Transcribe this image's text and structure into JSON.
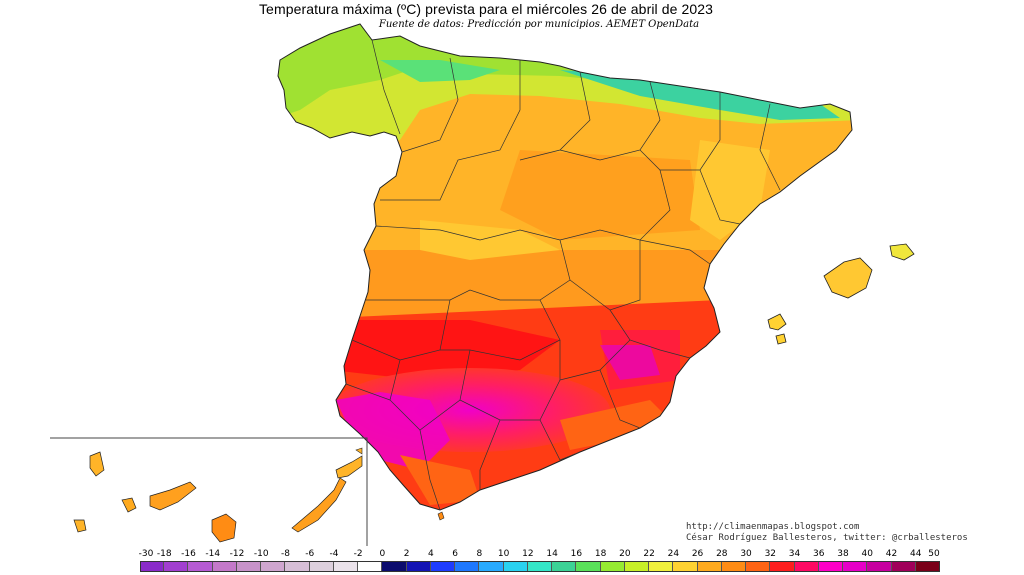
{
  "title": "Temperatura máxima (ºC) prevista para el miércoles 26 de abril de 2023",
  "subtitle": "Fuente de datos: Predicción por municipios. AEMET OpenData",
  "credit": {
    "url": "http://climaenmapas.blogspot.com",
    "author": "César Rodríguez Ballesteros, twitter: @crballesteros"
  },
  "legend": {
    "labels": [
      "-30",
      "-18",
      "-16",
      "-14",
      "-12",
      "-10",
      "-8",
      "-6",
      "-4",
      "-2",
      "0",
      "2",
      "4",
      "6",
      "8",
      "10",
      "12",
      "14",
      "16",
      "18",
      "20",
      "22",
      "24",
      "26",
      "28",
      "30",
      "32",
      "34",
      "36",
      "38",
      "40",
      "42",
      "44",
      "50"
    ],
    "colors": [
      "#8a2bc9",
      "#a23fd0",
      "#b65bd4",
      "#c479c9",
      "#c893c9",
      "#cfa6cf",
      "#d6bed6",
      "#ddd0dd",
      "#ebe3eb",
      "#ffffff",
      "#0c0c6e",
      "#1414b4",
      "#1e3cff",
      "#1e78ff",
      "#28aaff",
      "#2ad2f0",
      "#34e6c8",
      "#3cd296",
      "#5ae15a",
      "#96eb32",
      "#c8f028",
      "#f0f03c",
      "#ffd232",
      "#ffaa1e",
      "#ff8c14",
      "#ff6414",
      "#ff1e1e",
      "#ff0a64",
      "#ff00c8",
      "#e600c8",
      "#c800a0",
      "#a0005a",
      "#7a0019"
    ]
  }
}
